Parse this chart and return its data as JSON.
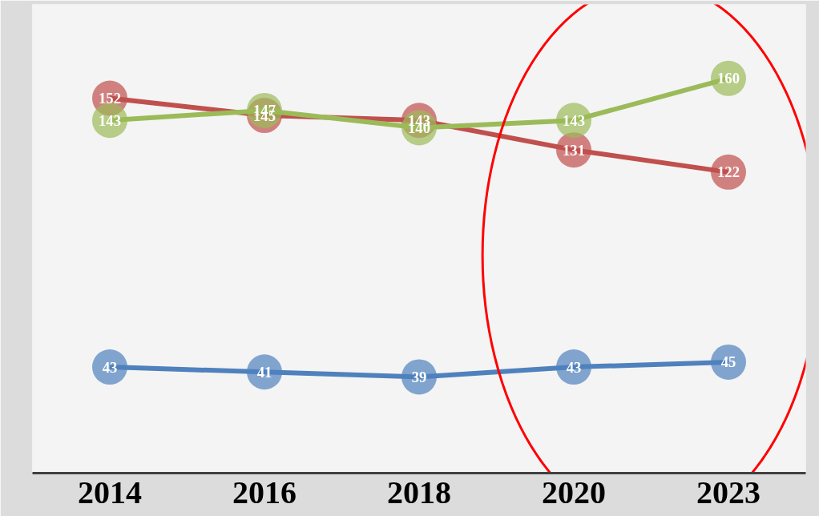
{
  "chart_data": {
    "type": "line",
    "categories": [
      "2014",
      "2016",
      "2018",
      "2020",
      "2023"
    ],
    "series": [
      {
        "color": "#4f81bd",
        "values": [
          43,
          41,
          39,
          43,
          45
        ]
      },
      {
        "color": "#c0504d",
        "values": [
          152,
          145,
          143,
          131,
          122
        ]
      },
      {
        "color": "#9bbb59",
        "values": [
          143,
          147,
          140,
          143,
          160
        ]
      }
    ],
    "ylim": [
      0,
      190
    ],
    "tick_labels": "x",
    "grid": false,
    "marker": "circle",
    "line_style": "solid",
    "data_labels": true
  }
}
